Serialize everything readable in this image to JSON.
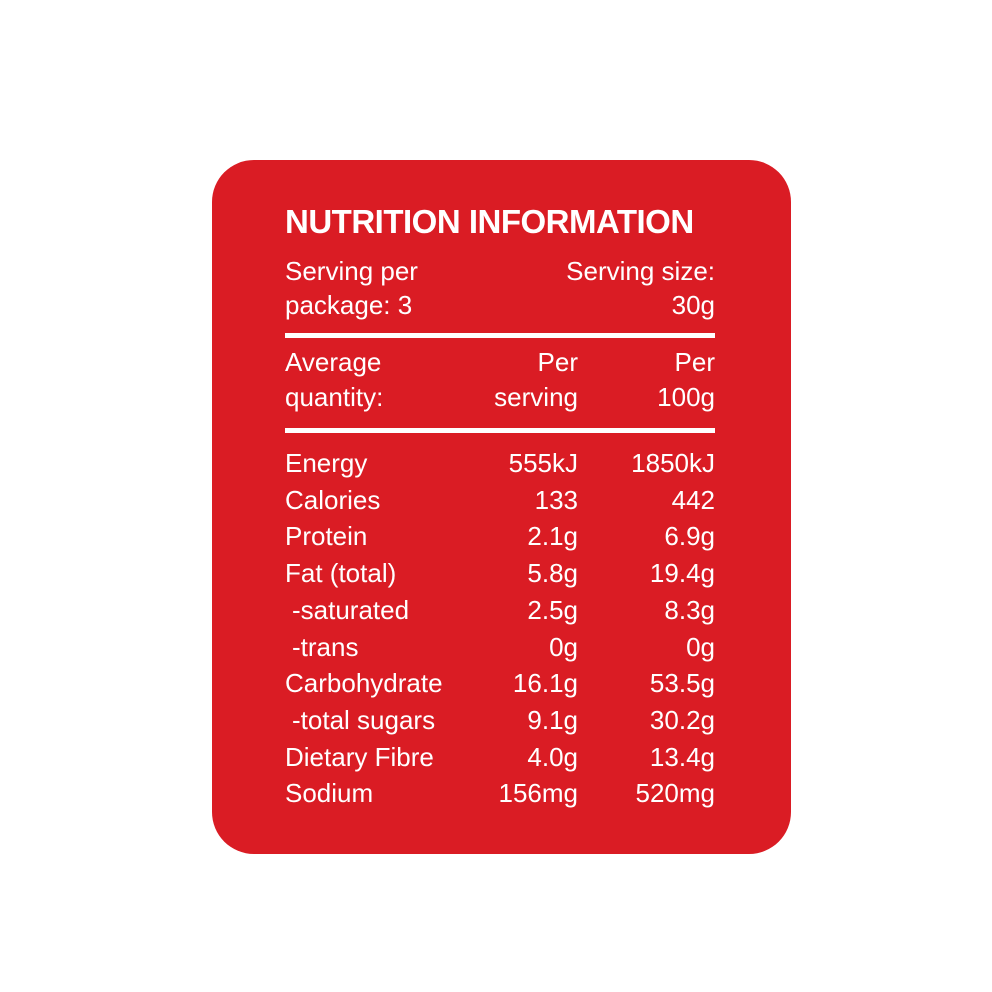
{
  "title": "NUTRITION INFORMATION",
  "serving": {
    "per_package": [
      "Serving per",
      "package: 3"
    ],
    "size": [
      "Serving size:",
      "30g"
    ]
  },
  "table": {
    "header": [
      [
        "Average",
        "quantity:"
      ],
      [
        "Per",
        "serving"
      ],
      [
        "Per",
        "100g"
      ]
    ],
    "rows": [
      [
        "Energy",
        "555kJ",
        "1850kJ"
      ],
      [
        "Calories",
        "133",
        "442"
      ],
      [
        "Protein",
        "2.1g",
        "6.9g"
      ],
      [
        "Fat (total)",
        "5.8g",
        "19.4g"
      ],
      [
        "-saturated",
        "2.5g",
        "8.3g"
      ],
      [
        "-trans",
        "0g",
        "0g"
      ],
      [
        "Carbohydrate",
        "16.1g",
        "53.5g"
      ],
      [
        "-total sugars",
        "9.1g",
        "30.2g"
      ],
      [
        "Dietary Fibre",
        "4.0g",
        "13.4g"
      ],
      [
        "Sodium",
        "156mg",
        "520mg"
      ]
    ]
  }
}
